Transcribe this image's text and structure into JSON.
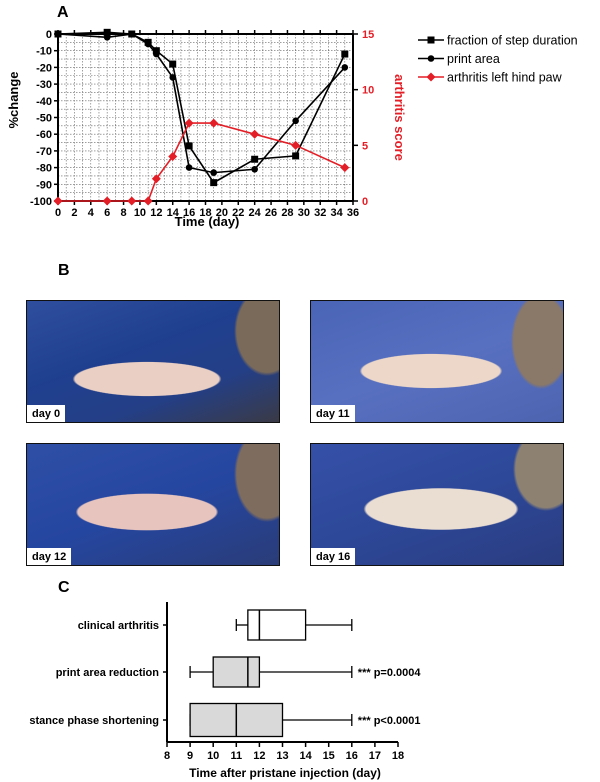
{
  "panels": {
    "a": {
      "label": "A"
    },
    "b": {
      "label": "B"
    },
    "c": {
      "label": "C"
    }
  },
  "chart_data": [
    {
      "id": "A",
      "type": "line",
      "title": "",
      "xlabel": "Time (day)",
      "ylabel": "%change",
      "y2label": "arthritis score",
      "xlim": [
        0,
        36
      ],
      "ylim": [
        -100,
        0
      ],
      "y2lim": [
        0,
        15
      ],
      "xticks": [
        0,
        2,
        4,
        6,
        8,
        10,
        12,
        14,
        16,
        18,
        20,
        22,
        24,
        26,
        28,
        30,
        32,
        34,
        36
      ],
      "yticks": [
        0,
        -10,
        -20,
        -30,
        -40,
        -50,
        -60,
        -70,
        -80,
        -90,
        -100
      ],
      "y2ticks": [
        0,
        5,
        10,
        15
      ],
      "grid": true,
      "legend_position": "right",
      "series": [
        {
          "name": "fraction of step duration",
          "axis": "left",
          "marker": "square",
          "color": "#000000",
          "x": [
            0,
            6,
            9,
            11,
            12,
            14,
            16,
            19,
            24,
            29,
            35
          ],
          "y": [
            0,
            1,
            0,
            -5,
            -10,
            -18,
            -67,
            -89,
            -75,
            -73,
            -12
          ]
        },
        {
          "name": "print area",
          "axis": "left",
          "marker": "circle",
          "color": "#000000",
          "x": [
            0,
            6,
            9,
            11,
            12,
            14,
            16,
            19,
            24,
            29,
            35
          ],
          "y": [
            0,
            -2,
            0,
            -6,
            -12,
            -26,
            -80,
            -83,
            -81,
            -52,
            -20
          ]
        },
        {
          "name": "arthritis left hind paw",
          "axis": "right",
          "marker": "diamond",
          "color": "#e41e26",
          "x": [
            0,
            6,
            9,
            11,
            12,
            14,
            16,
            19,
            24,
            29,
            35
          ],
          "y": [
            0,
            0,
            0,
            0,
            2,
            4,
            7,
            7,
            6,
            5,
            3
          ]
        }
      ]
    },
    {
      "id": "C",
      "type": "box",
      "orientation": "horizontal",
      "xlabel": "Time after pristane injection (day)",
      "xlim": [
        8,
        18
      ],
      "xticks": [
        8,
        9,
        10,
        11,
        12,
        13,
        14,
        15,
        16,
        17,
        18
      ],
      "categories": [
        "clinical arthritis",
        "print area reduction",
        "stance phase shortening"
      ],
      "boxes": [
        {
          "label": "clinical arthritis",
          "min": 11,
          "q1": 11.5,
          "median": 12,
          "q3": 14,
          "max": 16,
          "fill": "#ffffff",
          "annotation": ""
        },
        {
          "label": "print area reduction",
          "min": 9,
          "q1": 10,
          "median": 11.5,
          "q3": 12,
          "max": 16,
          "fill": "#d9d9d9",
          "annotation": "*** p=0.0004"
        },
        {
          "label": "stance phase shortening",
          "min": 9,
          "q1": 9,
          "median": 11,
          "q3": 13,
          "max": 16,
          "fill": "#d9d9d9",
          "annotation": "*** p<0.0001"
        }
      ]
    }
  ],
  "photos": [
    {
      "caption": "day 0"
    },
    {
      "caption": "day 11"
    },
    {
      "caption": "day 12"
    },
    {
      "caption": "day 16"
    }
  ]
}
